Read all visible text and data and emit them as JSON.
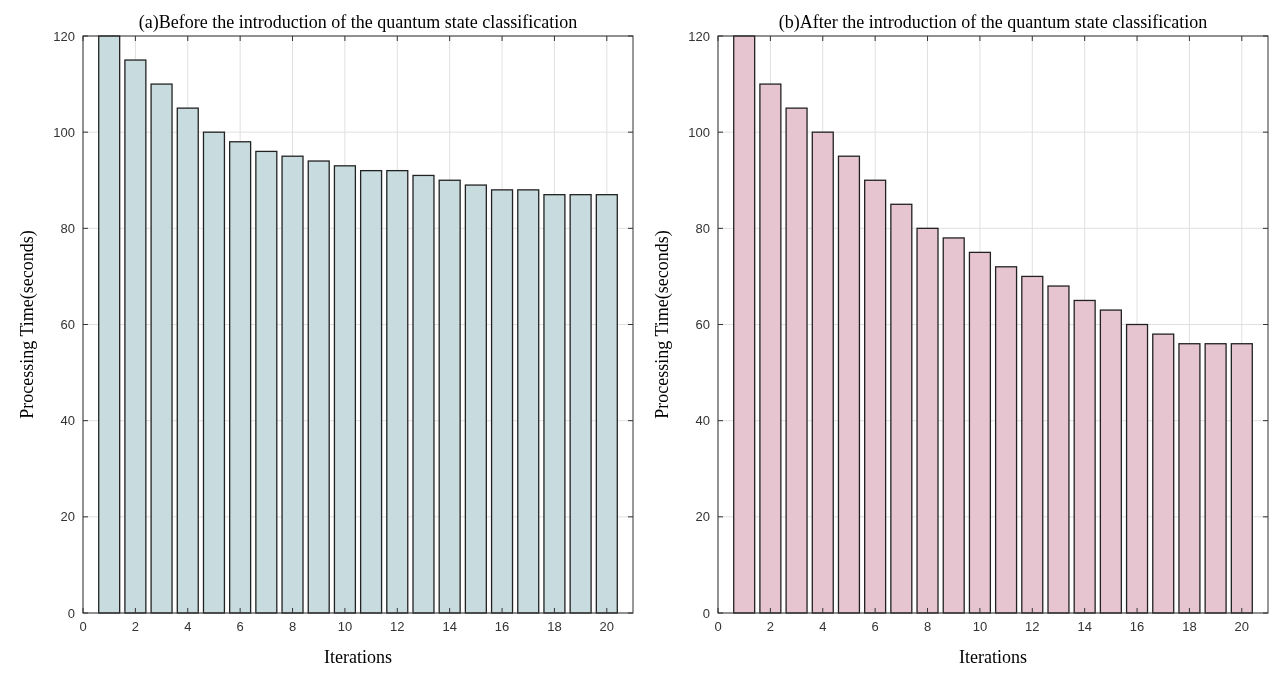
{
  "chart_data": [
    {
      "type": "bar",
      "title": "(a)Before the introduction of the quantum state classification",
      "xlabel": "Iterations",
      "ylabel": "Processing Time(seconds)",
      "x": [
        1,
        2,
        3,
        4,
        5,
        6,
        7,
        8,
        9,
        10,
        11,
        12,
        13,
        14,
        15,
        16,
        17,
        18,
        19,
        20
      ],
      "series": [
        {
          "color": "#c8dcdf",
          "values": [
            120,
            115,
            110,
            105,
            100,
            98,
            96,
            95,
            94,
            93,
            92,
            92,
            91,
            90,
            89,
            88,
            88,
            87,
            87,
            87
          ]
        }
      ],
      "xlim": [
        0,
        21
      ],
      "xticks": [
        0,
        2,
        4,
        6,
        8,
        10,
        12,
        14,
        16,
        18,
        20
      ],
      "ylim": [
        0,
        120
      ],
      "yticks": [
        0,
        20,
        40,
        60,
        80,
        100,
        120
      ],
      "grid": true
    },
    {
      "type": "bar",
      "title": "(b)After the introduction of the quantum state classification",
      "xlabel": "Iterations",
      "ylabel": "Processing Time(seconds)",
      "x": [
        1,
        2,
        3,
        4,
        5,
        6,
        7,
        8,
        9,
        10,
        11,
        12,
        13,
        14,
        15,
        16,
        17,
        18,
        19,
        20
      ],
      "series": [
        {
          "color": "#e6c5d0",
          "values": [
            120,
            110,
            105,
            100,
            95,
            90,
            85,
            80,
            78,
            75,
            72,
            70,
            68,
            65,
            63,
            60,
            58,
            56,
            56,
            56
          ]
        }
      ],
      "xlim": [
        0,
        21
      ],
      "xticks": [
        0,
        2,
        4,
        6,
        8,
        10,
        12,
        14,
        16,
        18,
        20
      ],
      "ylim": [
        0,
        120
      ],
      "yticks": [
        0,
        20,
        40,
        60,
        80,
        100,
        120
      ],
      "grid": true
    }
  ]
}
